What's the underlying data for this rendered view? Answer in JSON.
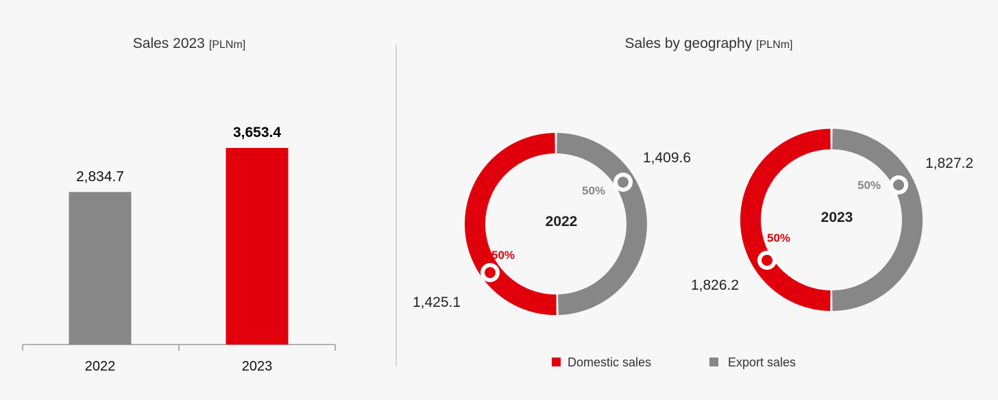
{
  "colors": {
    "domestic": "#e0000b",
    "export": "#878787",
    "prev_bar": "#878787",
    "curr_bar": "#e0000b",
    "axis": "#9a9a9a",
    "divider": "#cccccc"
  },
  "chart_data": [
    {
      "type": "bar",
      "title": "Sales 2023",
      "title_unit": "[PLNm]",
      "categories": [
        "2022",
        "2023"
      ],
      "values": [
        2834.7,
        3653.4
      ],
      "value_labels": [
        "2,834.7",
        "3,653.4"
      ],
      "xlabel": "",
      "ylabel": "",
      "grid": false
    },
    {
      "type": "pie",
      "title": "Sales by geography",
      "title_unit": "[PLNm]",
      "legend": [
        "Domestic sales",
        "Export sales"
      ],
      "legend_placement": "bottom",
      "donuts": [
        {
          "label": "2022",
          "slices": [
            {
              "name": "Domestic sales",
              "value": 1425.1,
              "value_label": "1,425.1",
              "pct_label": "50%"
            },
            {
              "name": "Export sales",
              "value": 1409.6,
              "value_label": "1,409.6",
              "pct_label": "50%"
            }
          ]
        },
        {
          "label": "2023",
          "slices": [
            {
              "name": "Domestic sales",
              "value": 1826.2,
              "value_label": "1,826.2",
              "pct_label": "50%"
            },
            {
              "name": "Export sales",
              "value": 1827.2,
              "value_label": "1,827.2",
              "pct_label": "50%"
            }
          ]
        }
      ]
    }
  ]
}
